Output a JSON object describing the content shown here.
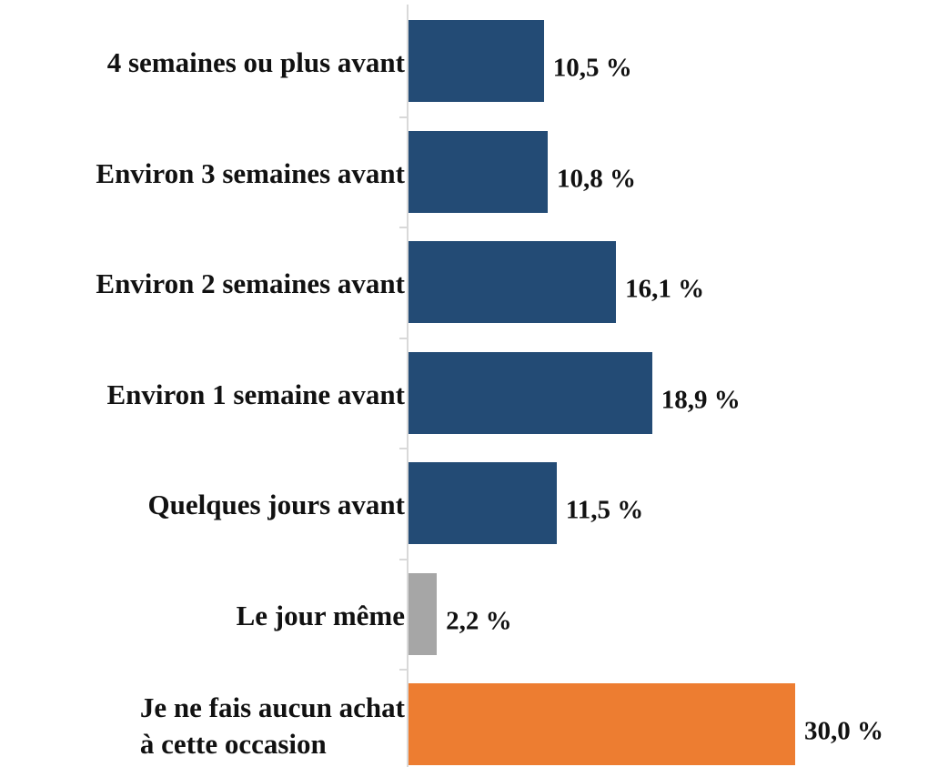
{
  "chart_data": {
    "type": "bar",
    "orientation": "horizontal",
    "categories": [
      "4 semaines ou plus avant",
      "Environ 3 semaines avant",
      "Environ 2 semaines avant",
      "Environ 1 semaine avant",
      "Quelques jours avant",
      "Le jour même",
      "Je ne fais aucun achat\nà cette occasion"
    ],
    "values": [
      10.5,
      10.8,
      16.1,
      18.9,
      11.5,
      2.2,
      30.0
    ],
    "value_labels": [
      "10,5 %",
      "10,8 %",
      "16,1 %",
      "18,9 %",
      "11,5 %",
      "2,2 %",
      "30,0 %"
    ],
    "colors": [
      "#234b75",
      "#234b75",
      "#234b75",
      "#234b75",
      "#234b75",
      "#a6a6a6",
      "#ed7d31"
    ]
  }
}
